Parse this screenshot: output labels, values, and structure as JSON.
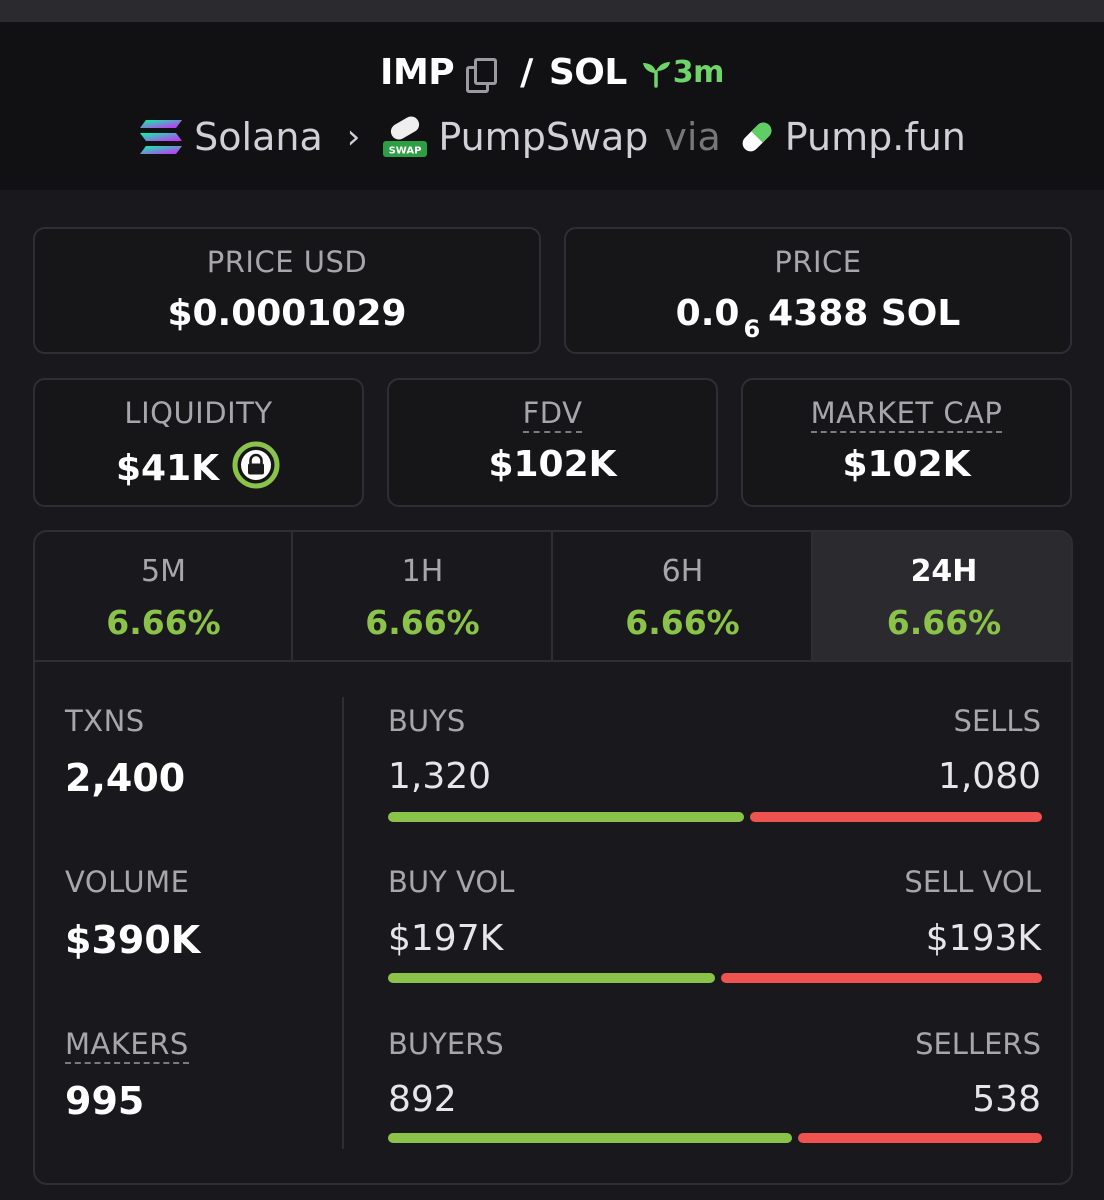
{
  "pair": {
    "base": "IMP",
    "quote": "SOL",
    "age": "3m",
    "separator": "/"
  },
  "route": {
    "chain": "Solana",
    "dex": "PumpSwap",
    "via_label": "via",
    "launchpad": "Pump.fun",
    "swap_badge": "SWAP"
  },
  "price_usd": {
    "label": "PRICE USD",
    "value": "$0.0001029"
  },
  "price_native": {
    "label": "PRICE",
    "prefix": "0.0",
    "zeros_subscript": "6",
    "digits": "4388 SOL"
  },
  "liquidity": {
    "label": "LIQUIDITY",
    "value": "$41K"
  },
  "fdv": {
    "label": "FDV",
    "value": "$102K"
  },
  "market_cap": {
    "label": "MARKET CAP",
    "value": "$102K"
  },
  "tabs": [
    {
      "label": "5M",
      "change": "6.66%"
    },
    {
      "label": "1H",
      "change": "6.66%"
    },
    {
      "label": "6H",
      "change": "6.66%"
    },
    {
      "label": "24H",
      "change": "6.66%",
      "active": true
    }
  ],
  "stats": {
    "txns": {
      "label": "TXNS",
      "value": "2,400"
    },
    "volume": {
      "label": "VOLUME",
      "value": "$390K"
    },
    "makers": {
      "label": "MAKERS",
      "value": "995"
    }
  },
  "splits": {
    "buys": {
      "label": "BUYS",
      "value": "1,320"
    },
    "sells": {
      "label": "SELLS",
      "value": "1,080"
    },
    "buy_vol": {
      "label": "BUY VOL",
      "value": "$197K"
    },
    "sell_vol": {
      "label": "SELL VOL",
      "value": "$193K"
    },
    "buyers": {
      "label": "BUYERS",
      "value": "892"
    },
    "sellers": {
      "label": "SELLERS",
      "value": "538"
    }
  },
  "bar_ratios": {
    "txns_buy_share": 0.55,
    "volume_buy_share": 0.505,
    "makers_buy_share": 0.624
  },
  "colors": {
    "positive": "#8bc34a",
    "negative": "#ef5350",
    "accent_age": "#6fd46a"
  }
}
